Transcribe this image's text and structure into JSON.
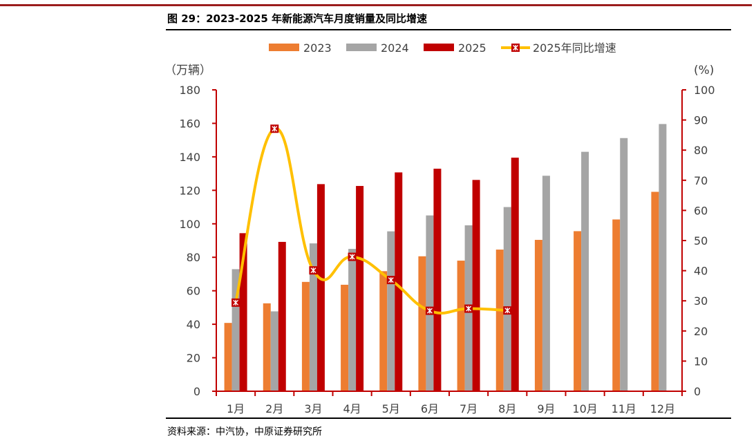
{
  "title": "图 29：2023-2025 年新能源汽车月度销量及同比增速",
  "source": "资料来源：中汽协，中原证券研究所",
  "chart_data": {
    "type": "bar",
    "categories": [
      "1月",
      "2月",
      "3月",
      "4月",
      "5月",
      "6月",
      "7月",
      "8月",
      "9月",
      "10月",
      "11月",
      "12月"
    ],
    "series": [
      {
        "name": "2023",
        "type": "bar",
        "axis": "left",
        "color": "#ed7d31",
        "values": [
          40.8,
          52.5,
          65.3,
          63.6,
          71.7,
          80.6,
          78.0,
          84.6,
          90.4,
          95.6,
          102.6,
          119.1
        ]
      },
      {
        "name": "2024",
        "type": "bar",
        "axis": "left",
        "color": "#a5a5a5",
        "values": [
          72.9,
          47.7,
          88.3,
          85.0,
          95.5,
          105.0,
          99.1,
          110.0,
          128.7,
          143.0,
          151.2,
          159.6
        ]
      },
      {
        "name": "2025",
        "type": "bar",
        "axis": "left",
        "color": "#c00000",
        "values": [
          94.4,
          89.2,
          123.7,
          122.6,
          130.7,
          132.9,
          126.2,
          139.5,
          null,
          null,
          null,
          null
        ]
      },
      {
        "name": "2025年同比增速",
        "type": "line",
        "axis": "right",
        "color": "#ffc000",
        "marker_color": "#c00000",
        "values": [
          29.4,
          87.1,
          40.1,
          44.6,
          36.9,
          26.7,
          27.4,
          26.8,
          null,
          null,
          null,
          null
        ]
      }
    ],
    "ylabel_left": "（万辆）",
    "ylabel_right": "(%)",
    "ylim_left": [
      0,
      180
    ],
    "yticks_left": [
      "0",
      "20",
      "40",
      "60",
      "80",
      "100",
      "120",
      "140",
      "160",
      "180"
    ],
    "ylim_right": [
      0,
      100
    ],
    "yticks_right": [
      "0",
      "10",
      "20",
      "30",
      "40",
      "50",
      "60",
      "70",
      "80",
      "90",
      "100"
    ],
    "legend_position": "top",
    "grid": false
  }
}
